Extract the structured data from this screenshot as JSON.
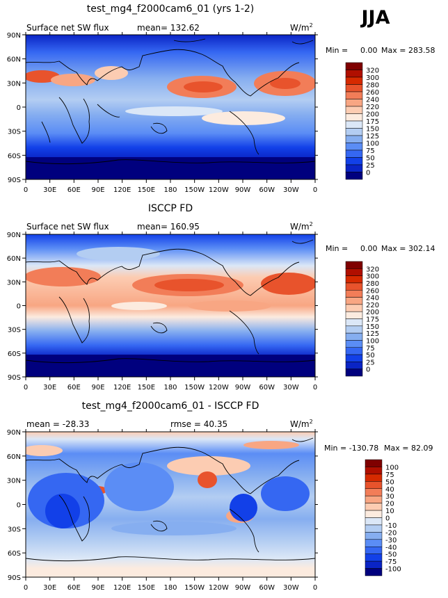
{
  "season": "JJA",
  "chart_data": [
    {
      "type": "heatmap",
      "title": "test_mg4_f2000cam6_01 (yrs 1-2)",
      "left_label": "Surface net SW flux",
      "mean_label": "mean=",
      "mean": "132.62",
      "units": "W/m",
      "units_exp": "2",
      "min_label": "Min =",
      "min": "0.00",
      "max_label": "Max =",
      "max": "283.58",
      "xticks": [
        "0",
        "30E",
        "60E",
        "90E",
        "120E",
        "150E",
        "180",
        "150W",
        "120W",
        "90W",
        "60W",
        "30W",
        "0"
      ],
      "yticks": [
        "90N",
        "60N",
        "30N",
        "0",
        "30S",
        "60S",
        "90S"
      ],
      "colorbar_labels": [
        "320",
        "300",
        "280",
        "260",
        "240",
        "220",
        "200",
        "175",
        "150",
        "125",
        "100",
        "75",
        "50",
        "25",
        "0"
      ],
      "colorbar_colors": [
        "#7f0000",
        "#b00f00",
        "#d62a00",
        "#e8532c",
        "#f27d58",
        "#f8a683",
        "#fcccb2",
        "#fcebdf",
        "#dbe7f7",
        "#b3cdf2",
        "#86aef0",
        "#5b8df5",
        "#3567f2",
        "#1240e8",
        "#0a24c5",
        "#00007e"
      ]
    },
    {
      "type": "heatmap",
      "title": "ISCCP FD",
      "left_label": "Surface net SW flux",
      "mean_label": "mean=",
      "mean": "160.95",
      "units": "W/m",
      "units_exp": "2",
      "min_label": "Min =",
      "min": "0.00",
      "max_label": "Max =",
      "max": "302.14",
      "xticks": [
        "0",
        "30E",
        "60E",
        "90E",
        "120E",
        "150E",
        "180",
        "150W",
        "120W",
        "90W",
        "60W",
        "30W",
        "0"
      ],
      "yticks": [
        "90N",
        "60N",
        "30N",
        "0",
        "30S",
        "60S",
        "90S"
      ],
      "colorbar_labels": [
        "320",
        "300",
        "280",
        "260",
        "240",
        "220",
        "200",
        "175",
        "150",
        "125",
        "100",
        "75",
        "50",
        "25",
        "0"
      ],
      "colorbar_colors": [
        "#7f0000",
        "#b00f00",
        "#d62a00",
        "#e8532c",
        "#f27d58",
        "#f8a683",
        "#fcccb2",
        "#fcebdf",
        "#dbe7f7",
        "#b3cdf2",
        "#86aef0",
        "#5b8df5",
        "#3567f2",
        "#1240e8",
        "#0a24c5",
        "#00007e"
      ]
    },
    {
      "type": "heatmap",
      "title": "test_mg4_f2000cam6_01 - ISCCP FD",
      "left_label": "mean = -28.33",
      "mean_label": "rmse =",
      "mean": "40.35",
      "units": "W/m",
      "units_exp": "2",
      "min_label": "Min =",
      "min": "-130.78",
      "max_label": "Max =",
      "max": "82.09",
      "xticks": [
        "0",
        "30E",
        "60E",
        "90E",
        "120E",
        "150E",
        "180",
        "150W",
        "120W",
        "90W",
        "60W",
        "30W",
        "0"
      ],
      "yticks": [
        "90N",
        "60N",
        "30N",
        "0",
        "30S",
        "60S",
        "90S"
      ],
      "colorbar_labels": [
        "100",
        "75",
        "50",
        "40",
        "30",
        "20",
        "10",
        "0",
        "-10",
        "-20",
        "-30",
        "-40",
        "-50",
        "-75",
        "-100"
      ],
      "colorbar_colors": [
        "#7f0000",
        "#b00f00",
        "#d62a00",
        "#e8532c",
        "#f27d58",
        "#f8a683",
        "#fcccb2",
        "#fcebdf",
        "#dbe7f7",
        "#b3cdf2",
        "#86aef0",
        "#5b8df5",
        "#3567f2",
        "#1240e8",
        "#0a24c5",
        "#00007e"
      ]
    }
  ]
}
